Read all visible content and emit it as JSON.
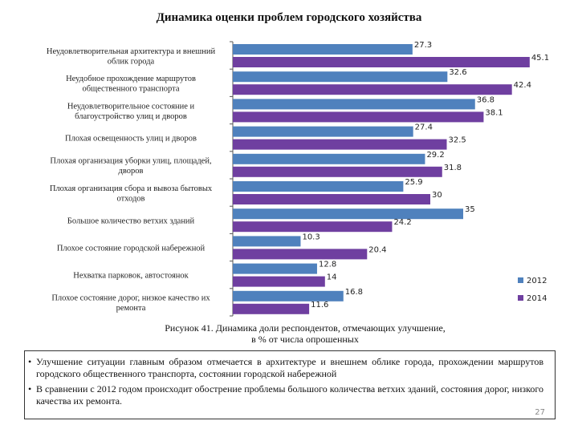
{
  "chart_data": {
    "type": "bar",
    "orientation": "horizontal",
    "title": "Динамика оценки проблем городского хозяйства",
    "categories": [
      [
        "Неудовлетворительная архитектура и внешний",
        "облик города"
      ],
      [
        "Неудобное прохождение маршрутов",
        "общественного транспорта"
      ],
      [
        "Неудовлетворительное состояние и",
        "благоустройство улиц и дворов"
      ],
      [
        "Плохая освещенность улиц и дворов"
      ],
      [
        "Плохая организация уборки улиц, площадей,",
        "дворов"
      ],
      [
        "Плохая организация сбора и вывоза бытовых",
        "отходов"
      ],
      [
        "Большое количество ветхих зданий"
      ],
      [
        "Плохое состояние городской набережной"
      ],
      [
        "Нехватка парковок, автостоянок"
      ],
      [
        "Плохое состояние дорог, низкое качество их",
        "ремонта"
      ]
    ],
    "series": [
      {
        "name": "2012",
        "color": "#4f81bd",
        "values": [
          27.3,
          32.6,
          36.8,
          27.4,
          29.2,
          25.9,
          35,
          10.3,
          12.8,
          16.8
        ]
      },
      {
        "name": "2014",
        "color": "#6f3fa0",
        "values": [
          45.1,
          42.4,
          38.1,
          32.5,
          31.8,
          30,
          24.2,
          20.4,
          14,
          11.6
        ]
      }
    ],
    "value_labels": [
      [
        "27.3",
        "45.1"
      ],
      [
        "32.6",
        "42.4"
      ],
      [
        "36.8",
        "38.1"
      ],
      [
        "27.4",
        "32.5"
      ],
      [
        "29.2",
        "31.8"
      ],
      [
        "25.9",
        "30"
      ],
      [
        "35",
        "24.2"
      ],
      [
        "10.3",
        "20.4"
      ],
      [
        "12.8",
        "14"
      ],
      [
        "16.8",
        "11.6"
      ]
    ],
    "xlim": [
      0,
      50
    ],
    "legend_position": "right"
  },
  "caption": {
    "line1": "Рисунок 41. Динамика доли респондентов, отмечающих улучшение,",
    "line2": "в % от числа опрошенных"
  },
  "notes": [
    {
      "bullet": "•",
      "text": "Улучшение ситуации главным образом отмечается в  архитектуре и внешнем облике города, прохождении маршрутов городского общественного транспорта, состоянии городской набережной"
    },
    {
      "bullet": "•",
      "text": "В сравнении с   2012 годом происходит обострение проблемы большого количества ветхих зданий, состояния дорог, низкого качества их ремонта."
    }
  ],
  "page_number": "27"
}
